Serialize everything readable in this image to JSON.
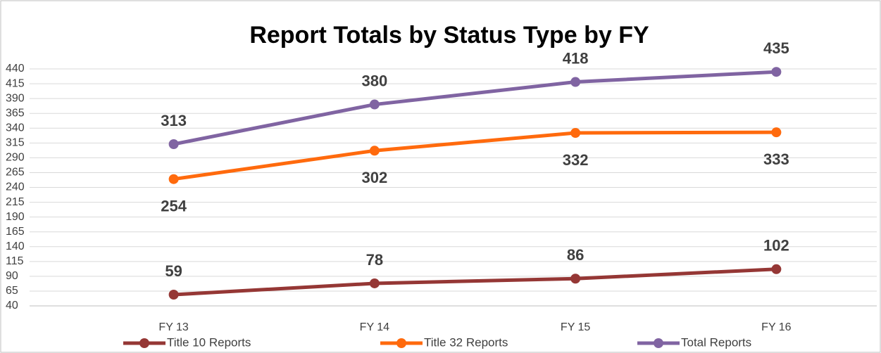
{
  "chart_data": {
    "type": "line",
    "title": "Report Totals by Status Type by FY",
    "categories": [
      "FY 13",
      "FY 14",
      "FY 15",
      "FY 16"
    ],
    "series": [
      {
        "name": "Title 10 Reports",
        "color": "#953735",
        "values": [
          59,
          78,
          86,
          102
        ]
      },
      {
        "name": "Title 32 Reports",
        "color": "#ff6a0d",
        "values": [
          254,
          302,
          332,
          333
        ]
      },
      {
        "name": "Total Reports",
        "color": "#8064a2",
        "values": [
          313,
          380,
          418,
          435
        ]
      }
    ],
    "ylim": [
      40,
      440
    ],
    "yticks": [
      40,
      65,
      90,
      115,
      140,
      165,
      190,
      215,
      240,
      265,
      290,
      315,
      340,
      365,
      390,
      415,
      440
    ],
    "grid": true,
    "legend": "bottom"
  }
}
